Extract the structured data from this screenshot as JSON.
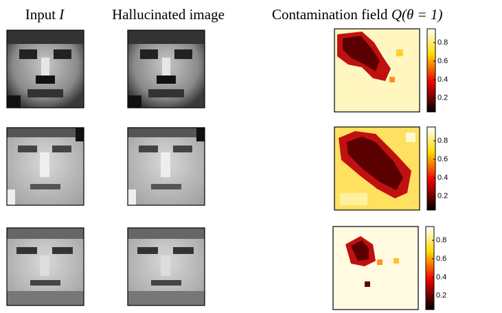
{
  "headers": [
    {
      "text": "Input ",
      "math": "I"
    },
    {
      "text": "Hallucinated image"
    },
    {
      "text": "Contamination field ",
      "math": "Q(θ = 1)"
    }
  ],
  "rows": [
    {
      "colorbar": {
        "clim": [
          0.05,
          0.95
        ],
        "ticks": [
          0.2,
          0.4,
          0.6,
          0.8
        ]
      }
    },
    {
      "colorbar": {
        "clim": [
          0.05,
          0.95
        ],
        "ticks": [
          0.2,
          0.4,
          0.6,
          0.8
        ]
      }
    },
    {
      "colorbar": {
        "clim": [
          0.05,
          0.95
        ],
        "ticks": [
          0.2,
          0.4,
          0.6,
          0.8
        ]
      }
    }
  ]
}
